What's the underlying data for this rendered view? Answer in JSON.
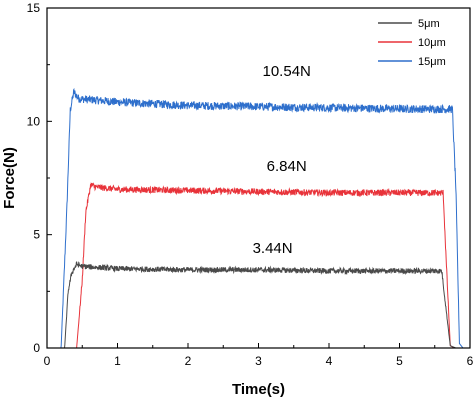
{
  "chart_data": {
    "type": "line",
    "title": "",
    "xlabel": "Time(s)",
    "ylabel": "Force(N)",
    "xlim": [
      0,
      6
    ],
    "ylim": [
      0,
      15
    ],
    "xticks": [
      0,
      1,
      2,
      3,
      4,
      5,
      6
    ],
    "yticks": [
      0,
      5,
      10,
      15
    ],
    "grid": false,
    "legend_position": "top-right",
    "series": [
      {
        "name": "5μm",
        "color": "#4a4a4a",
        "x": [
          0,
          0.25,
          0.3,
          0.35,
          0.42,
          0.5,
          1.0,
          2.0,
          3.0,
          4.0,
          5.0,
          5.6,
          5.65,
          5.72,
          5.8,
          6.0
        ],
        "y": [
          0,
          0,
          2.5,
          3.3,
          3.7,
          3.6,
          3.5,
          3.45,
          3.45,
          3.4,
          3.4,
          3.4,
          2.0,
          0.1,
          0,
          0
        ],
        "noise": 0.12
      },
      {
        "name": "10μm",
        "color": "#e8333a",
        "x": [
          0,
          0.42,
          0.5,
          0.55,
          0.62,
          0.7,
          1.0,
          2.0,
          3.0,
          4.0,
          5.0,
          5.62,
          5.66,
          5.72,
          5.78,
          6.0
        ],
        "y": [
          0,
          0,
          3.0,
          6.0,
          7.2,
          7.1,
          7.0,
          6.95,
          6.9,
          6.85,
          6.85,
          6.84,
          4.0,
          0.1,
          0,
          0
        ],
        "noise": 0.14
      },
      {
        "name": "15μm",
        "color": "#2e6fcc",
        "x": [
          0,
          0.2,
          0.28,
          0.33,
          0.38,
          0.45,
          1.0,
          2.0,
          3.0,
          4.0,
          5.0,
          5.75,
          5.8,
          5.85,
          5.9,
          6.0
        ],
        "y": [
          0,
          0,
          6.0,
          10.5,
          11.3,
          11.0,
          10.85,
          10.7,
          10.65,
          10.6,
          10.55,
          10.54,
          7.0,
          0.2,
          0,
          0
        ],
        "noise": 0.18
      }
    ],
    "annotations": [
      {
        "text": "10.54N",
        "x": 3.4,
        "y": 12.0
      },
      {
        "text": "6.84N",
        "x": 3.4,
        "y": 7.8
      },
      {
        "text": "3.44N",
        "x": 3.2,
        "y": 4.2
      }
    ]
  }
}
